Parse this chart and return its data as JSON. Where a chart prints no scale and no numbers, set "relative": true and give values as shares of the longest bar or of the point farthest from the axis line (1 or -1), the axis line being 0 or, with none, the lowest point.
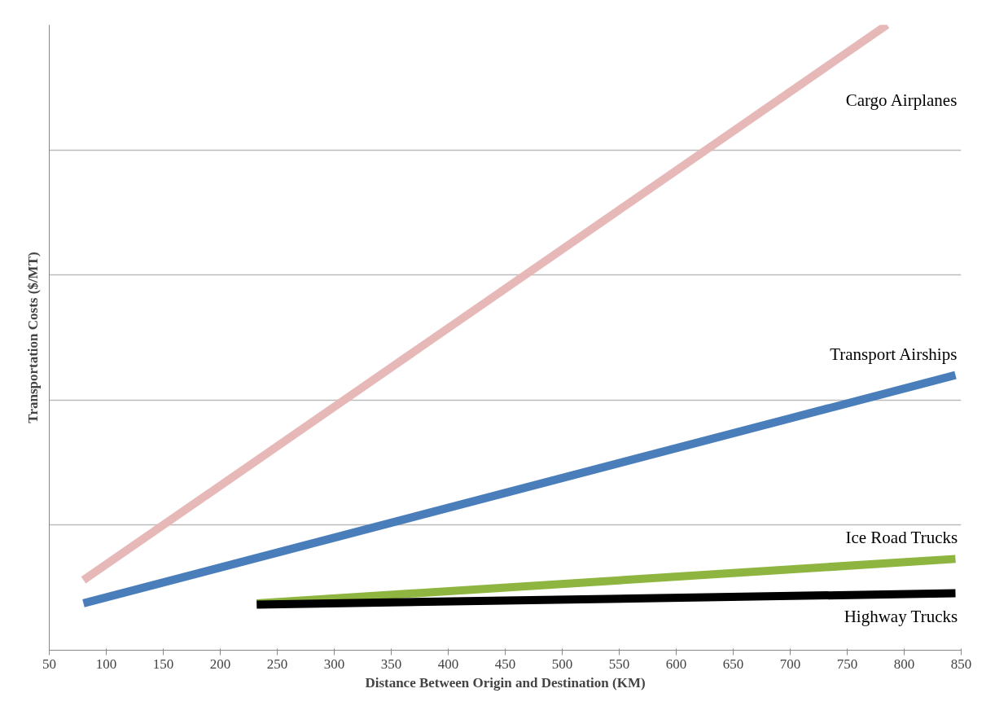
{
  "chart_data": {
    "type": "line",
    "relative": true,
    "xlabel": "Distance Between Origin and Destination (KM)",
    "ylabel": "Transportation Costs ($/MT)",
    "xlim": [
      50,
      850
    ],
    "xticks": [
      50,
      100,
      150,
      200,
      250,
      300,
      350,
      400,
      450,
      500,
      550,
      600,
      650,
      700,
      750,
      800,
      850
    ],
    "grid": "y",
    "marker": "none",
    "line_style": "solid",
    "series": [
      {
        "name": "Cargo Airplanes",
        "color": "#e6b9b8",
        "x": [
          80,
          785
        ],
        "values": [
          0.112,
          1
        ]
      },
      {
        "name": "Transport Airships",
        "color": "#4a7ebb",
        "x": [
          80,
          845
        ],
        "values": [
          0.075,
          0.44
        ]
      },
      {
        "name": "Ice Road Trucks",
        "color": "#8eb53f",
        "x": [
          232,
          845
        ],
        "values": [
          0.075,
          0.146
        ]
      },
      {
        "name": "Highway Trucks",
        "color": "#000000",
        "x": [
          232,
          845
        ],
        "values": [
          0.073,
          0.091
        ]
      }
    ]
  }
}
